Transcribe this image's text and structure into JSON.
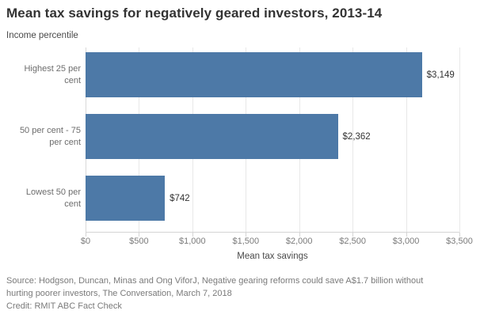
{
  "title": "Mean tax savings for negatively geared investors, 2013-14",
  "chart_data": {
    "type": "bar",
    "orientation": "horizontal",
    "title": "Mean tax savings for negatively geared investors, 2013-14",
    "categories": [
      "Highest 25 per cent",
      "50 per cent - 75 per cent",
      "Lowest 50 per cent"
    ],
    "values": [
      3149,
      2362,
      742
    ],
    "value_labels": [
      "$3,149",
      "$2,362",
      "$742"
    ],
    "xlabel": "Mean tax savings",
    "ylabel": "Income percentile",
    "xlim": [
      0,
      3500
    ],
    "x_ticks": [
      0,
      500,
      1000,
      1500,
      2000,
      2500,
      3000,
      3500
    ],
    "x_tick_labels": [
      "$0",
      "$500",
      "$1,000",
      "$1,500",
      "$2,000",
      "$2,500",
      "$3,000",
      "$3,500"
    ],
    "bar_color": "#4d79a7",
    "grid": true,
    "legend": false
  },
  "footer": {
    "source_line1": "Source: Hodgson, Duncan, Minas and Ong ViforJ, Negative gearing reforms could save A$1.7 billion without",
    "source_line2": "hurting poorer investors, The Conversation, March 7, 2018",
    "credit": "Credit: RMIT ABC Fact Check"
  },
  "colors": {
    "bar": "#4d79a7",
    "title_text": "#333333",
    "axis_text": "#7b7b7b",
    "gridline": "#e8e8e8"
  }
}
